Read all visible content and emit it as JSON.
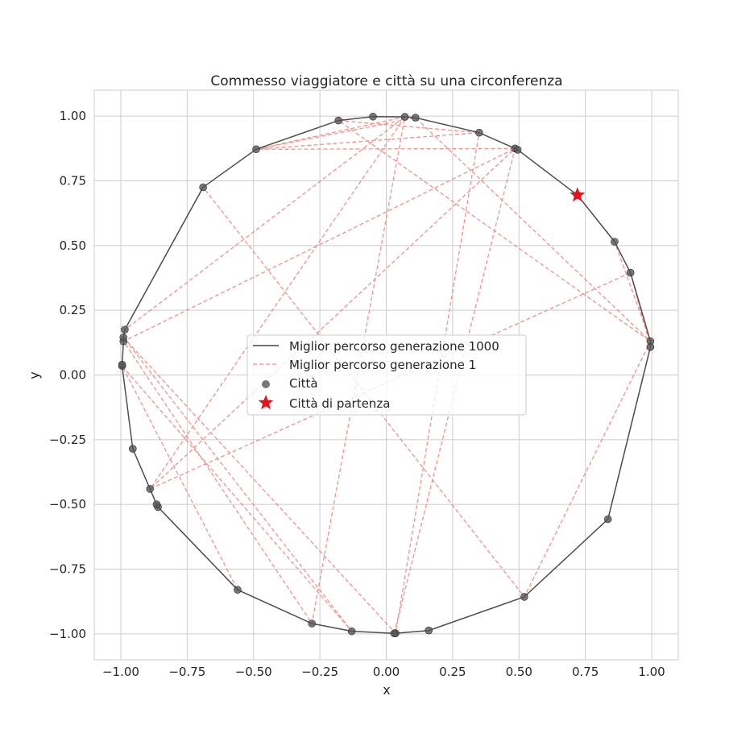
{
  "chart_data": {
    "type": "line",
    "title": "Commesso viaggiatore e città su una circonferenza",
    "xlabel": "x",
    "ylabel": "y",
    "xlim": [
      -1.1,
      1.1
    ],
    "ylim": [
      -1.1,
      1.1
    ],
    "xticks": [
      "−1.00",
      "−0.75",
      "−0.50",
      "−0.25",
      "0.00",
      "0.25",
      "0.50",
      "0.75",
      "1.00"
    ],
    "xtick_values": [
      -1.0,
      -0.75,
      -0.5,
      -0.25,
      0.0,
      0.25,
      0.5,
      0.75,
      1.0
    ],
    "yticks": [
      "−1.00",
      "−0.75",
      "−0.50",
      "−0.25",
      "0.00",
      "0.25",
      "0.50",
      "0.75",
      "1.00"
    ],
    "ytick_values": [
      -1.0,
      -0.75,
      -0.5,
      -0.25,
      0.0,
      0.25,
      0.5,
      0.75,
      1.0
    ],
    "grid": true,
    "legend_position": "center",
    "colors": {
      "best_final": "#444444",
      "best_first": "#f8766d",
      "cities": "#555555",
      "start": "#e8111a",
      "grid": "#cccccc",
      "frame": "#cccccc"
    },
    "legend": [
      {
        "label": "Miglior percorso generazione 1000",
        "kind": "line-solid"
      },
      {
        "label": "Miglior percorso generazione 1",
        "kind": "line-dashed"
      },
      {
        "label": "Città",
        "kind": "dot"
      },
      {
        "label": "Città di partenza",
        "kind": "star"
      }
    ],
    "cities": [
      [
        0.72,
        0.695
      ],
      [
        0.86,
        0.515
      ],
      [
        0.92,
        0.395
      ],
      [
        0.995,
        0.13
      ],
      [
        0.995,
        0.108
      ],
      [
        0.835,
        -0.557
      ],
      [
        0.52,
        -0.857
      ],
      [
        0.16,
        -0.987
      ],
      [
        0.035,
        -0.998
      ],
      [
        0.03,
        -0.998
      ],
      [
        -0.13,
        -0.99
      ],
      [
        -0.28,
        -0.96
      ],
      [
        -0.56,
        -0.83
      ],
      [
        -0.86,
        -0.51
      ],
      [
        -0.865,
        -0.5
      ],
      [
        -0.89,
        -0.44
      ],
      [
        -0.955,
        -0.285
      ],
      [
        -0.995,
        0.035
      ],
      [
        -0.995,
        0.04
      ],
      [
        -0.99,
        0.13
      ],
      [
        -0.99,
        0.145
      ],
      [
        -0.985,
        0.175
      ],
      [
        -0.69,
        0.725
      ],
      [
        -0.49,
        0.872
      ],
      [
        -0.18,
        0.983
      ],
      [
        -0.05,
        0.998
      ],
      [
        0.07,
        0.997
      ],
      [
        0.11,
        0.994
      ],
      [
        0.35,
        0.936
      ],
      [
        0.485,
        0.875
      ],
      [
        0.495,
        0.87
      ]
    ],
    "best_final_path": [
      [
        0.72,
        0.695
      ],
      [
        0.86,
        0.515
      ],
      [
        0.92,
        0.395
      ],
      [
        0.995,
        0.13
      ],
      [
        0.995,
        0.108
      ],
      [
        0.835,
        -0.557
      ],
      [
        0.52,
        -0.857
      ],
      [
        0.16,
        -0.987
      ],
      [
        0.035,
        -0.998
      ],
      [
        0.03,
        -0.998
      ],
      [
        -0.13,
        -0.99
      ],
      [
        -0.28,
        -0.96
      ],
      [
        -0.56,
        -0.83
      ],
      [
        -0.86,
        -0.51
      ],
      [
        -0.865,
        -0.5
      ],
      [
        -0.89,
        -0.44
      ],
      [
        -0.955,
        -0.285
      ],
      [
        -0.995,
        0.035
      ],
      [
        -0.995,
        0.04
      ],
      [
        -0.99,
        0.13
      ],
      [
        -0.99,
        0.145
      ],
      [
        -0.985,
        0.175
      ],
      [
        -0.69,
        0.725
      ],
      [
        -0.49,
        0.872
      ],
      [
        -0.18,
        0.983
      ],
      [
        -0.05,
        0.998
      ],
      [
        0.07,
        0.997
      ],
      [
        0.11,
        0.994
      ],
      [
        0.35,
        0.936
      ],
      [
        0.485,
        0.875
      ],
      [
        0.495,
        0.87
      ],
      [
        0.72,
        0.695
      ]
    ],
    "best_first_path": [
      [
        0.72,
        0.695
      ],
      [
        0.86,
        0.515
      ],
      [
        0.995,
        0.13
      ],
      [
        -0.18,
        0.983
      ],
      [
        0.35,
        0.936
      ],
      [
        -0.49,
        0.872
      ],
      [
        0.485,
        0.875
      ],
      [
        -0.99,
        0.13
      ],
      [
        -0.28,
        -0.96
      ],
      [
        0.07,
        0.997
      ],
      [
        -0.49,
        0.872
      ],
      [
        0.11,
        0.994
      ],
      [
        0.995,
        0.13
      ],
      [
        0.52,
        -0.857
      ],
      [
        -0.69,
        0.725
      ],
      [
        -0.985,
        0.175
      ],
      [
        0.07,
        0.997
      ],
      [
        -0.89,
        -0.44
      ],
      [
        0.92,
        0.395
      ],
      [
        0.995,
        0.108
      ],
      [
        0.835,
        -0.557
      ],
      [
        0.52,
        -0.857
      ],
      [
        0.16,
        -0.987
      ],
      [
        0.03,
        -0.998
      ],
      [
        0.485,
        0.875
      ],
      [
        -0.89,
        -0.44
      ],
      [
        -0.86,
        -0.51
      ],
      [
        -0.56,
        -0.83
      ],
      [
        -0.995,
        0.035
      ],
      [
        -0.13,
        -0.99
      ],
      [
        -0.99,
        0.145
      ],
      [
        0.035,
        -0.998
      ],
      [
        0.35,
        0.936
      ]
    ],
    "start_city": [
      0.72,
      0.695
    ]
  }
}
